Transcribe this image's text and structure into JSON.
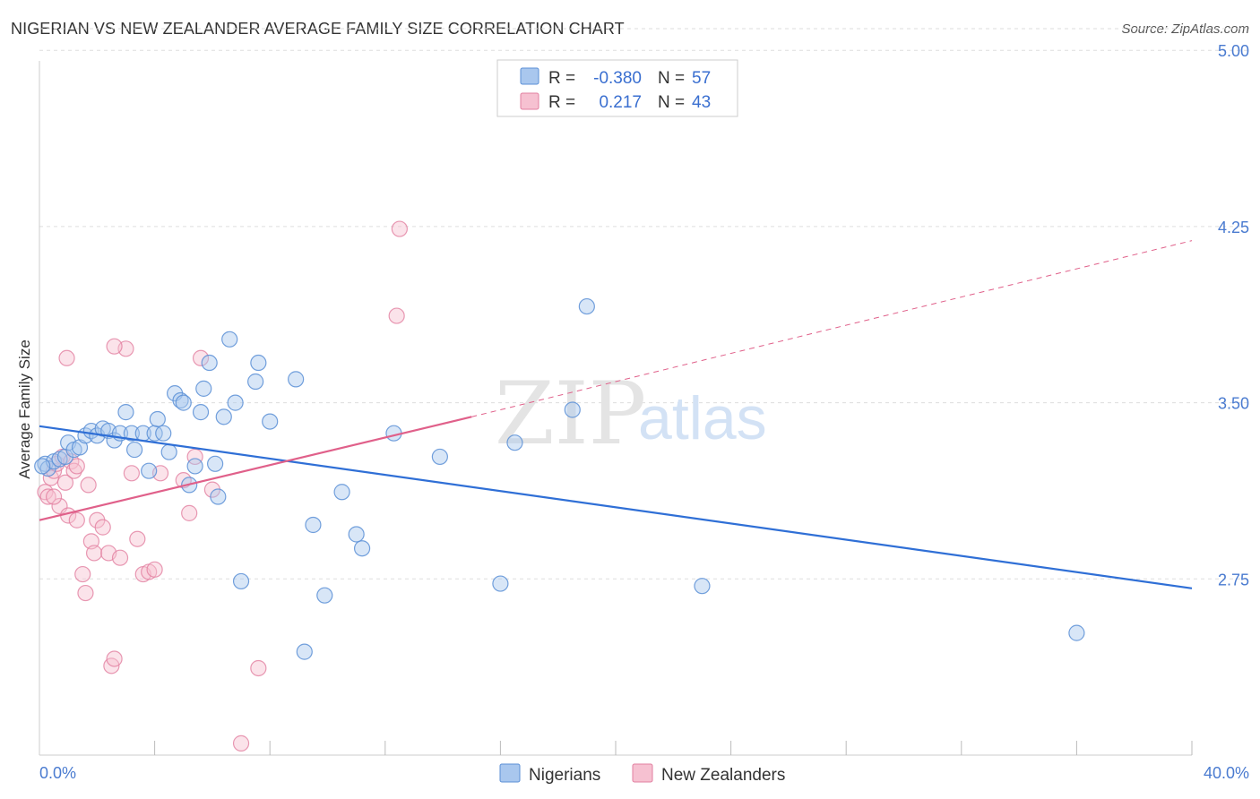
{
  "header": {
    "title": "NIGERIAN VS NEW ZEALANDER AVERAGE FAMILY SIZE CORRELATION CHART",
    "source": "Source: ZipAtlas.com"
  },
  "watermark": {
    "zip": "ZIP",
    "atlas": "atlas"
  },
  "colors": {
    "blue_fill": "#a9c7ee",
    "blue_stroke": "#5b8fd6",
    "blue_line": "#2f6fd6",
    "pink_fill": "#f6c1d1",
    "pink_stroke": "#e27fa0",
    "pink_line": "#e0608a",
    "grid": "#dddddd",
    "tick_text": "#4a7bd0"
  },
  "legend": {
    "rows": [
      {
        "r_label": "R =",
        "r_value": "-0.380",
        "n_label": "N =",
        "n_value": "57"
      },
      {
        "r_label": "R =",
        "r_value": "0.217",
        "n_label": "N =",
        "n_value": "43"
      }
    ]
  },
  "chart_data": {
    "type": "scatter",
    "title": "NIGERIAN VS NEW ZEALANDER AVERAGE FAMILY SIZE CORRELATION CHART",
    "ylabel": "Average Family Size",
    "xlabel": "",
    "xlim": [
      0,
      40
    ],
    "ylim": [
      2.0,
      5.1
    ],
    "x_tick_labels": [
      "0.0%",
      "40.0%"
    ],
    "y_ticks": [
      2.75,
      3.5,
      4.25,
      5.0
    ],
    "y_tick_labels": [
      "2.75",
      "3.50",
      "4.25",
      "5.00"
    ],
    "grid": "horizontal dashed",
    "legend_position": "top-center and bottom-center",
    "series": [
      {
        "name": "Nigerians",
        "r": -0.38,
        "n": 57,
        "trend": {
          "x": [
            0,
            40
          ],
          "y": [
            3.4,
            2.71
          ]
        },
        "points": [
          [
            0.2,
            3.24
          ],
          [
            0.3,
            3.22
          ],
          [
            0.5,
            3.25
          ],
          [
            0.7,
            3.26
          ],
          [
            0.9,
            3.27
          ],
          [
            1.0,
            3.33
          ],
          [
            1.2,
            3.3
          ],
          [
            1.4,
            3.31
          ],
          [
            1.6,
            3.36
          ],
          [
            1.8,
            3.38
          ],
          [
            2.0,
            3.36
          ],
          [
            2.2,
            3.39
          ],
          [
            2.4,
            3.38
          ],
          [
            2.6,
            3.34
          ],
          [
            2.8,
            3.37
          ],
          [
            3.0,
            3.46
          ],
          [
            3.2,
            3.37
          ],
          [
            3.3,
            3.3
          ],
          [
            3.6,
            3.37
          ],
          [
            3.8,
            3.21
          ],
          [
            4.0,
            3.37
          ],
          [
            4.1,
            3.43
          ],
          [
            4.3,
            3.37
          ],
          [
            4.5,
            3.29
          ],
          [
            4.7,
            3.54
          ],
          [
            4.9,
            3.51
          ],
          [
            5.0,
            3.5
          ],
          [
            5.2,
            3.15
          ],
          [
            5.4,
            3.23
          ],
          [
            5.6,
            3.46
          ],
          [
            5.7,
            3.56
          ],
          [
            5.9,
            3.67
          ],
          [
            6.1,
            3.24
          ],
          [
            6.2,
            3.1
          ],
          [
            6.4,
            3.44
          ],
          [
            6.6,
            3.77
          ],
          [
            6.8,
            3.5
          ],
          [
            7.0,
            2.74
          ],
          [
            7.5,
            3.59
          ],
          [
            7.6,
            3.67
          ],
          [
            8.0,
            3.42
          ],
          [
            8.9,
            3.6
          ],
          [
            9.2,
            2.44
          ],
          [
            9.5,
            2.98
          ],
          [
            9.9,
            2.68
          ],
          [
            10.5,
            3.12
          ],
          [
            11.0,
            2.94
          ],
          [
            11.2,
            2.88
          ],
          [
            12.3,
            3.37
          ],
          [
            13.9,
            3.27
          ],
          [
            16.0,
            2.73
          ],
          [
            16.5,
            3.33
          ],
          [
            18.5,
            3.47
          ],
          [
            19.0,
            3.91
          ],
          [
            23.0,
            2.72
          ],
          [
            36.0,
            2.52
          ],
          [
            0.1,
            3.23
          ]
        ]
      },
      {
        "name": "New Zealanders",
        "r": 0.217,
        "n": 43,
        "trend": {
          "x": [
            0,
            15
          ],
          "y": [
            3.0,
            3.44
          ]
        },
        "trend_extension": {
          "x": [
            15,
            40
          ],
          "y": [
            3.44,
            4.19
          ]
        },
        "points": [
          [
            0.2,
            3.12
          ],
          [
            0.3,
            3.1
          ],
          [
            0.4,
            3.18
          ],
          [
            0.5,
            3.21
          ],
          [
            0.6,
            3.24
          ],
          [
            0.7,
            3.06
          ],
          [
            0.8,
            3.27
          ],
          [
            0.9,
            3.16
          ],
          [
            1.0,
            3.02
          ],
          [
            1.1,
            3.25
          ],
          [
            1.2,
            3.21
          ],
          [
            1.3,
            3.23
          ],
          [
            1.5,
            2.77
          ],
          [
            1.6,
            2.69
          ],
          [
            1.7,
            3.15
          ],
          [
            1.8,
            2.91
          ],
          [
            1.9,
            2.86
          ],
          [
            2.0,
            3.0
          ],
          [
            2.2,
            2.97
          ],
          [
            2.4,
            2.86
          ],
          [
            2.5,
            2.38
          ],
          [
            2.6,
            2.41
          ],
          [
            2.8,
            2.84
          ],
          [
            3.0,
            3.73
          ],
          [
            3.2,
            3.2
          ],
          [
            3.4,
            2.92
          ],
          [
            3.6,
            2.77
          ],
          [
            3.8,
            2.78
          ],
          [
            4.0,
            2.79
          ],
          [
            4.2,
            3.2
          ],
          [
            5.0,
            3.17
          ],
          [
            5.2,
            3.03
          ],
          [
            5.4,
            3.27
          ],
          [
            5.6,
            3.69
          ],
          [
            6.0,
            3.13
          ],
          [
            7.0,
            2.05
          ],
          [
            7.6,
            2.37
          ],
          [
            12.5,
            4.24
          ],
          [
            12.4,
            3.87
          ],
          [
            0.95,
            3.69
          ],
          [
            2.6,
            3.74
          ],
          [
            1.3,
            3.0
          ],
          [
            0.5,
            3.1
          ]
        ]
      }
    ]
  },
  "bottom_legend": {
    "items": [
      {
        "label": "Nigerians"
      },
      {
        "label": "New Zealanders"
      }
    ]
  }
}
